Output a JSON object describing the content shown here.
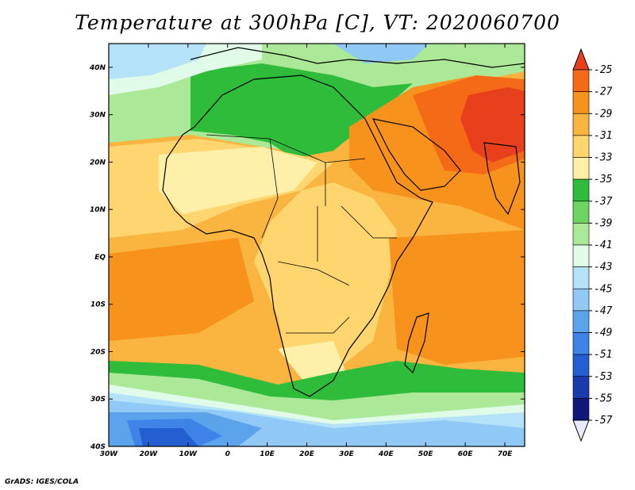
{
  "title": "Temperature at 300hPa [C], VT: 2020060700",
  "credit": "GrADS: IGES/COLA",
  "axes": {
    "x_ticks": [
      "30W",
      "20W",
      "10W",
      "0",
      "10E",
      "20E",
      "30E",
      "40E",
      "50E",
      "60E",
      "70E"
    ],
    "x_values": [
      -30,
      -20,
      -10,
      0,
      10,
      20,
      30,
      40,
      50,
      60,
      70
    ],
    "y_ticks": [
      "40N",
      "30N",
      "20N",
      "10N",
      "EQ",
      "10S",
      "20S",
      "30S",
      "40S"
    ],
    "y_values": [
      40,
      30,
      20,
      10,
      0,
      -10,
      -20,
      -30,
      -40
    ],
    "lon_range": [
      -30,
      75
    ],
    "lat_range": [
      -40,
      45
    ]
  },
  "colorbar": {
    "labels": [
      "-25",
      "-27",
      "-29",
      "-31",
      "-33",
      "-35",
      "-37",
      "-39",
      "-41",
      "-43",
      "-45",
      "-47",
      "-49",
      "-51",
      "-53",
      "-55",
      "-57"
    ],
    "colors": [
      "#e8401c",
      "#f46a17",
      "#f7931d",
      "#f9b53f",
      "#fed56f",
      "#fff0a9",
      "#2fbc3a",
      "#6cd460",
      "#abe998",
      "#e0fce9",
      "#b3e2f9",
      "#90c9f5",
      "#5ba4ec",
      "#3f83e8",
      "#245fd1",
      "#1a3bae",
      "#10187a"
    ]
  }
}
